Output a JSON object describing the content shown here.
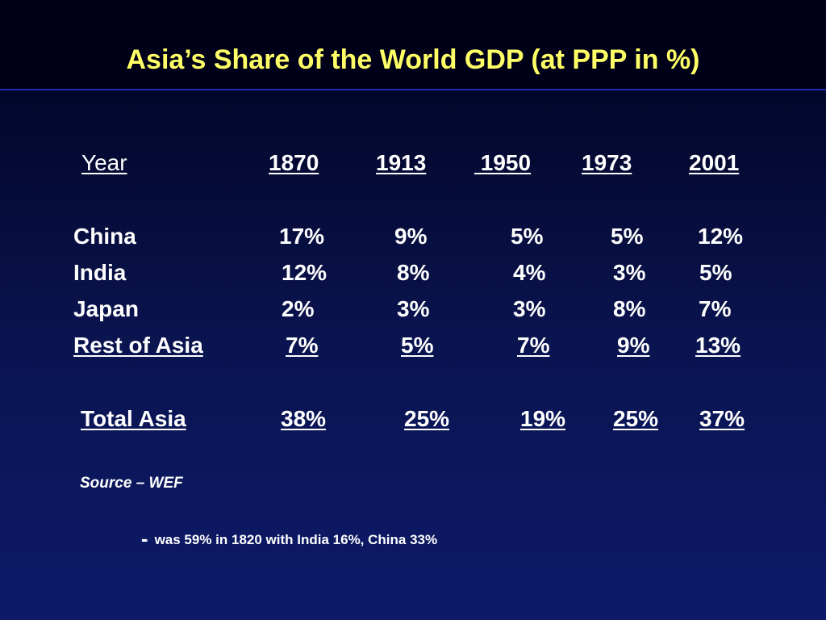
{
  "slide": {
    "title": "Asia’s Share of the World GDP (at PPP in %)"
  },
  "table": {
    "header_label": "Year",
    "years": [
      "1870",
      "1913",
      " 1950",
      "1973",
      "2001"
    ],
    "rows": [
      {
        "label": "China",
        "values": [
          "17%",
          "9%",
          "5%",
          "5%",
          "12%"
        ]
      },
      {
        "label": "India",
        "values": [
          "12%",
          "8%",
          "4%",
          "3%",
          "5%"
        ]
      },
      {
        "label": "Japan",
        "values": [
          "2%",
          "3%",
          "3%",
          "8%",
          "7%"
        ]
      },
      {
        "label": "Rest of Asia",
        "values": [
          "7%",
          "5%",
          "7%",
          "9%",
          "13%"
        ]
      }
    ],
    "total": {
      "label": "Total Asia",
      "values": [
        "38%",
        "25%",
        "19%",
        "25%",
        "37%"
      ]
    }
  },
  "footer": {
    "source": "Source – WEF",
    "note_dash": "-",
    "note": "was 59% in 1820 with India 16%, China 33%"
  },
  "colors": {
    "title": "#ffff66",
    "text": "#ffffff",
    "background_top": "#000018",
    "background_bottom": "#0d1a6a",
    "rule": "#1f2bb0"
  }
}
